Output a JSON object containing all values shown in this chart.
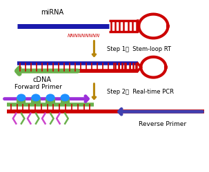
{
  "bg_color": "#ffffff",
  "mirna_color": "#1a1aad",
  "stem_color": "#cc0000",
  "cdna_color": "#6ab04c",
  "tick_color": "#cc0000",
  "arrow_step_color": "#b8860b",
  "forward_primer_color": "#9b30d9",
  "reverse_primer_color": "#4040b0",
  "circle_color": "#1e90ff",
  "probe_green_color": "#6ab04c",
  "primer_arm_purple": "#cc44cc",
  "primer_arm_green": "#6ab04c",
  "step1_text": "Step 1：  Stem-loop RT",
  "step2_text": "Step 2：  Real-time PCR",
  "mirna_label": "miRNA",
  "cdna_label": "cDNA",
  "forward_label": "Forward Primer",
  "reverse_label": "Reverse Primer",
  "nnnnn_label": "NNNNNNNNN"
}
